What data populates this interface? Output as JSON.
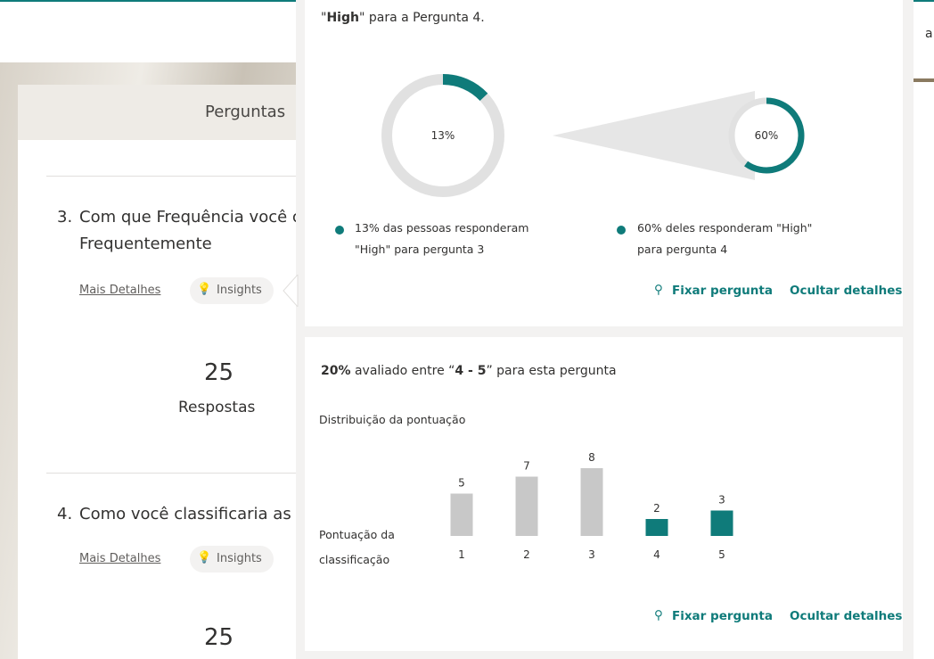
{
  "nav": {
    "partial": "a"
  },
  "form": {
    "section_title": "Perguntas",
    "questions": [
      {
        "number": "3.",
        "text": "Com que Frequência você co",
        "subtext": "Frequentemente",
        "details": "Mais Detalhes",
        "insights": "Insights",
        "count": 25,
        "count_label": "Respostas"
      },
      {
        "number": "4.",
        "text": "Como você classificaria as er",
        "details": "Mais Detalhes",
        "insights": "Insights",
        "count": 25
      }
    ]
  },
  "cross_insight": {
    "title_parts": [
      "\"",
      "High",
      "\" para a Pergunta 4."
    ],
    "donuts": [
      {
        "value": 13,
        "value_label": "13%",
        "color": "#0f7b7a",
        "legend": [
          "13% das pessoas responderam",
          "\"High\" para pergunta 3"
        ]
      },
      {
        "value": 60,
        "value_label": "60%",
        "color": "#0f7b7a",
        "legend": [
          "60% deles responderam \"High\"",
          "para pergunta 4"
        ]
      }
    ],
    "pin": "Fixar pergunta",
    "hide": "Ocultar detalhes"
  },
  "rating_insight": {
    "summary_parts": [
      "20%",
      " avaliado entre “",
      "4 - 5",
      "” para esta pergunta"
    ],
    "subtitle": "Distribuição da pontuação",
    "axis_label": [
      "Pontuação da",
      "classificação"
    ],
    "chart": {
      "type": "bar",
      "categories": [
        "1",
        "2",
        "3",
        "4",
        "5"
      ],
      "values": [
        5,
        7,
        8,
        2,
        3
      ],
      "colors": [
        "#c8c8c8",
        "#c8c8c8",
        "#c8c8c8",
        "#0f7b7a",
        "#0f7b7a"
      ]
    },
    "pin": "Fixar pergunta",
    "hide": "Ocultar detalhes"
  }
}
